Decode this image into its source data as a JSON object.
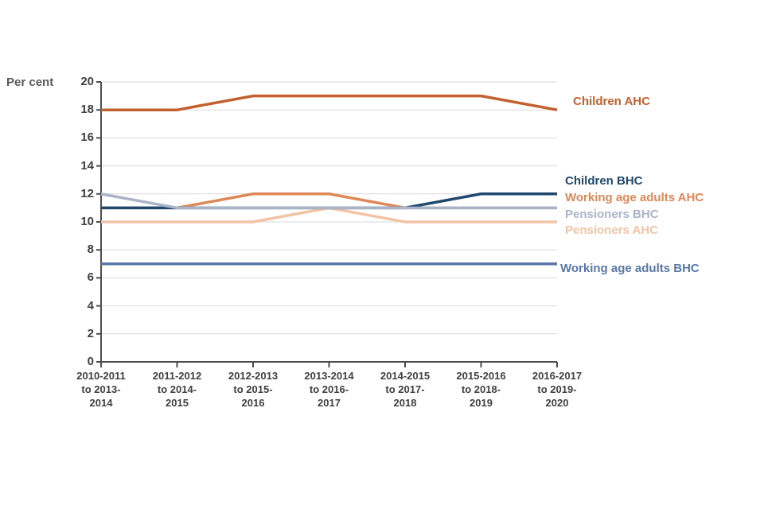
{
  "chart_data": {
    "type": "line",
    "title": "",
    "ylabel": "Per cent",
    "ylim": [
      0,
      20
    ],
    "ytick_step": 2,
    "grid": true,
    "legend_position": "right",
    "colors": {
      "axis": "#4d4d4d",
      "grid": "#d9d9d9",
      "tick_label": "#404040",
      "ylabel": "#595959",
      "background": "#ffffff"
    },
    "categories": [
      [
        "2010-2011",
        "to 2013-",
        "2014"
      ],
      [
        "2011-2012",
        "to 2014-",
        "2015"
      ],
      [
        "2012-2013",
        "to 2015-",
        "2016"
      ],
      [
        "2013-2014",
        "to 2016-",
        "2017"
      ],
      [
        "2014-2015",
        "to 2017-",
        "2018"
      ],
      [
        "2015-2016",
        "to 2018-",
        "2019"
      ],
      [
        "2016-2017",
        "to 2019-",
        "2020"
      ]
    ],
    "series": [
      {
        "name": "Children AHC",
        "key": "children-ahc",
        "color": "#c2602e",
        "values": [
          18,
          18,
          19,
          19,
          19,
          19,
          18
        ]
      },
      {
        "name": "Working age adults AHC",
        "key": "working-age-adults-ahc",
        "color": "#de8757",
        "values": [
          11,
          11,
          12,
          12,
          11,
          11,
          11
        ]
      },
      {
        "name": "Pensioners AHC",
        "key": "pensioners-ahc",
        "color": "#f3c3a6",
        "values": [
          10,
          10,
          10,
          11,
          10,
          10,
          10
        ]
      },
      {
        "name": "Children BHC",
        "key": "children-bhc",
        "color": "#1f486e",
        "values": [
          11,
          11,
          11,
          11,
          11,
          12,
          12
        ]
      },
      {
        "name": "Pensioners BHC",
        "key": "pensioners-bhc",
        "color": "#aab4c8",
        "values": [
          12,
          11,
          11,
          11,
          11,
          11,
          11
        ]
      },
      {
        "name": "Working age adults BHC",
        "key": "working-age-adults-bhc",
        "color": "#5876a8",
        "values": [
          7,
          7,
          7,
          7,
          7,
          7,
          7
        ]
      }
    ]
  }
}
